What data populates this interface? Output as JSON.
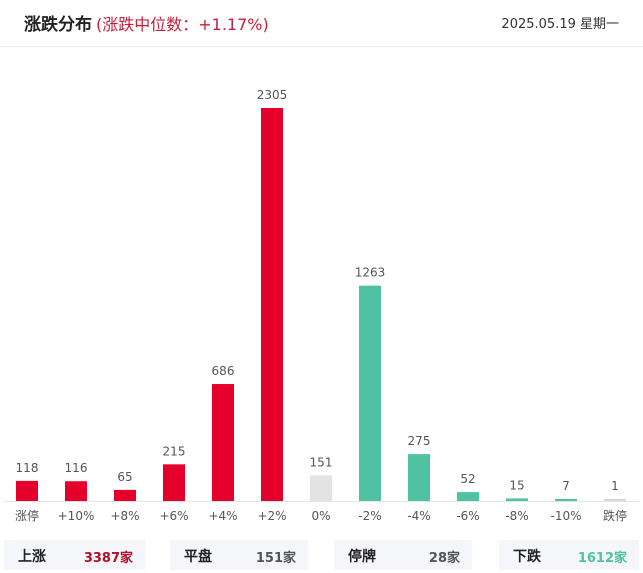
{
  "header": {
    "title": "涨跌分布",
    "subtitle": "(涨跌中位数：+1.17%)",
    "date": "2025.05.19 星期一"
  },
  "colors": {
    "up": "#e4002b",
    "down": "#4fc3a1",
    "flat": "#e3e3e3",
    "limit_down": "#cfd8dc"
  },
  "chart_data": {
    "type": "bar",
    "categories": [
      "涨停",
      "+10%",
      "+8%",
      "+6%",
      "+4%",
      "+2%",
      "0%",
      "-2%",
      "-4%",
      "-6%",
      "-8%",
      "-10%",
      "跌停"
    ],
    "values": [
      118,
      116,
      65,
      215,
      686,
      2305,
      151,
      1263,
      275,
      52,
      15,
      7,
      1
    ],
    "bar_colors": [
      "up",
      "up",
      "up",
      "up",
      "up",
      "up",
      "flat",
      "down",
      "down",
      "down",
      "down",
      "down",
      "limit_down"
    ],
    "title": "",
    "xlabel": "",
    "ylabel": "",
    "ylim": [
      0,
      2305
    ],
    "grid": false,
    "legend": "none"
  },
  "summary": [
    {
      "label": "上涨",
      "value": "3387家",
      "color": "#b0102c"
    },
    {
      "label": "平盘",
      "value": "151家",
      "color": "#555555"
    },
    {
      "label": "停牌",
      "value": "28家",
      "color": "#555555"
    },
    {
      "label": "下跌",
      "value": "1612家",
      "color": "#4fc3a1"
    }
  ]
}
